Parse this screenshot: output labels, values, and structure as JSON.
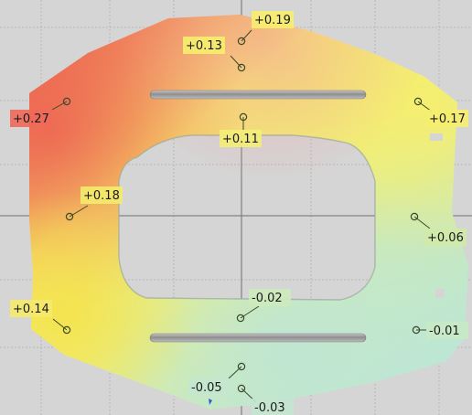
{
  "viewport": {
    "name": "3D deviation color map",
    "grid": true
  },
  "colors": {
    "background": "#d5d5d5",
    "grid": "#b4b4b4",
    "axis": "#6f6f6f",
    "deviation_high": "#ef6a5a",
    "deviation_mid": "#f6ec6a",
    "deviation_zero": "#c8e9b8",
    "deviation_low": "#b9e6da",
    "slot": "#9a9a9a"
  },
  "annotations": [
    {
      "id": "p1",
      "value": "+0.19",
      "tint": "#f6ee6e"
    },
    {
      "id": "p2",
      "value": "+0.13",
      "tint": "#f6ee6e"
    },
    {
      "id": "p3",
      "value": "+0.27",
      "tint": "#ef6a5a"
    },
    {
      "id": "p4",
      "value": "+0.11",
      "tint": "#f3ee78"
    },
    {
      "id": "p5",
      "value": "+0.17",
      "tint": "#f6ee6e"
    },
    {
      "id": "p6",
      "value": "+0.18",
      "tint": "#f4e96c"
    },
    {
      "id": "p7",
      "value": "+0.06",
      "tint": "#cfe9a8"
    },
    {
      "id": "p8",
      "value": "-0.02",
      "tint": "#cde9bd"
    },
    {
      "id": "p9",
      "value": "+0.14",
      "tint": "#f4e96c"
    },
    {
      "id": "p10",
      "value": "-0.01",
      "tint": "#c8e9c6"
    },
    {
      "id": "p11",
      "value": "-0.05",
      "tint": "#c4e6cf"
    },
    {
      "id": "p12",
      "value": "-0.03",
      "tint": "#c4e6cf"
    }
  ]
}
